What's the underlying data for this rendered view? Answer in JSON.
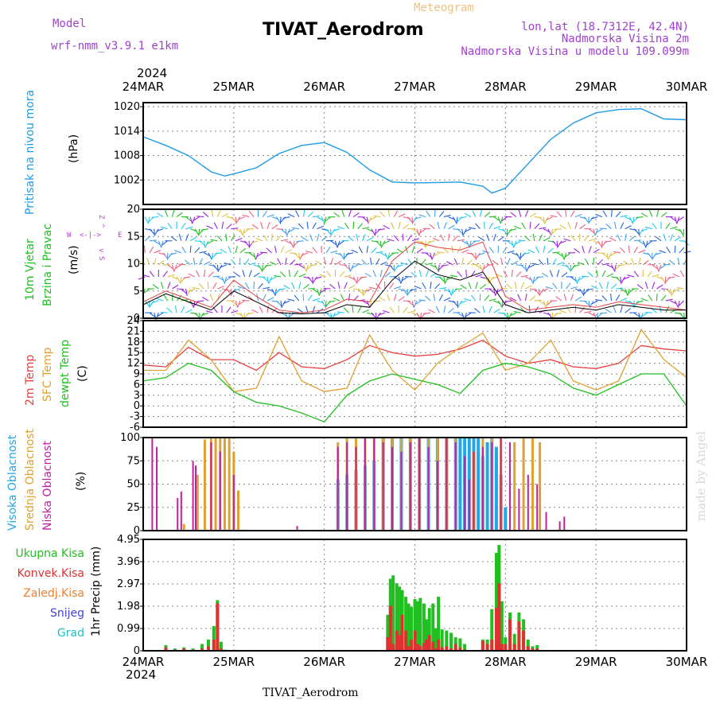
{
  "header": {
    "model_label": "Model",
    "model_name": "wrf-nmm_v3.9.1 e1km",
    "meteogram_label": "Meteogram",
    "title": "TIVAT_Aerodrom",
    "lonlat": "lon,lat (18.7312E, 42.4N)",
    "elevation": "Nadmorska Visina 2m",
    "model_elevation": "Nadmorska Visina u modelu 109.099m",
    "year_top": "2024",
    "year_bottom": "2024",
    "footer_station": "TIVAT_Aerodrom",
    "credit": "made by Angel"
  },
  "colors": {
    "pressure": "#1e9be6",
    "temp2m": "#e64040",
    "sfc": "#e0a030",
    "dewpt": "#20c020",
    "high_cloud": "#20a8e8",
    "mid_cloud": "#e0a030",
    "low_cloud": "#c020a0",
    "precip_total": "#20c020",
    "precip_conv": "#e03030",
    "wind_speed": "#000000",
    "gust": "#e04040"
  },
  "chart_data": [
    {
      "type": "line",
      "panel": "pressure",
      "ylabel": "Pritisak na nivou mora",
      "yunit": "(hPa)",
      "ylim": [
        996,
        1021
      ],
      "yticks": [
        1002,
        1008,
        1014,
        1020
      ],
      "ytick_labels": [
        "1002",
        "1008",
        "1014",
        "1020"
      ],
      "x_days": [
        0,
        0.25,
        0.5,
        0.75,
        0.9,
        1.0,
        1.25,
        1.5,
        1.75,
        2.0,
        2.25,
        2.5,
        2.75,
        3.0,
        3.25,
        3.5,
        3.75,
        3.85,
        4.0,
        4.25,
        4.5,
        4.75,
        5.0,
        5.25,
        5.5,
        5.75,
        6.0
      ],
      "series": [
        {
          "values": [
            1012.6,
            1010.5,
            1008.0,
            1004.0,
            1003.0,
            1003.5,
            1005.0,
            1008.5,
            1010.5,
            1011.2,
            1008.8,
            1004.5,
            1001.5,
            1001.3,
            1001.4,
            1001.5,
            1000.5,
            998.8,
            1000.0,
            1006.0,
            1012.0,
            1016.0,
            1018.5,
            1019.3,
            1019.5,
            1017.0,
            1016.8
          ]
        }
      ]
    },
    {
      "type": "barbs",
      "panel": "wind",
      "ylabel": [
        "10m Vjetar",
        "Brzina i Pravac"
      ],
      "yunit": "(m/s)",
      "compass": [
        "Z",
        "^",
        "W",
        "<-|->",
        "E",
        "v",
        "S"
      ],
      "ylim": [
        0,
        20
      ],
      "yticks": [
        0,
        5,
        10,
        15,
        20
      ],
      "ytick_labels": [
        "0",
        "5",
        "10",
        "15",
        "20"
      ],
      "x_days": [
        0,
        0.25,
        0.5,
        0.75,
        1.0,
        1.25,
        1.5,
        1.75,
        2.0,
        2.25,
        2.5,
        2.75,
        3.0,
        3.25,
        3.5,
        3.75,
        4.0,
        4.25,
        4.5,
        4.75,
        5.0,
        5.25,
        5.5,
        5.75,
        6.0
      ],
      "speed": [
        2.5,
        4.5,
        3.0,
        1.5,
        5.0,
        3.0,
        1.0,
        0.8,
        1.0,
        2.5,
        2.0,
        7.0,
        10.5,
        8.0,
        7.0,
        8.5,
        2.5,
        1.0,
        1.5,
        2.0,
        1.5,
        2.5,
        2.0,
        1.5,
        1.5
      ],
      "gust": [
        3.0,
        5.0,
        3.5,
        2.0,
        7.0,
        4.0,
        1.5,
        1.0,
        1.5,
        3.5,
        3.0,
        10.5,
        14.0,
        13.0,
        12.5,
        14.0,
        4.0,
        1.5,
        2.0,
        2.5,
        2.0,
        3.0,
        2.5,
        2.0,
        1.5
      ]
    },
    {
      "type": "line",
      "panel": "temperature",
      "ylabel": [
        "2m Temp",
        "SFC Temp",
        "dewpt Temp"
      ],
      "yunit": "(C)",
      "ylim": [
        -6,
        24
      ],
      "yticks": [
        -6,
        -3,
        0,
        3,
        6,
        9,
        12,
        15,
        18,
        21,
        24
      ],
      "ytick_labels": [
        "-6",
        "-3",
        "0",
        "3",
        "6",
        "9",
        "12",
        "15",
        "18",
        "21",
        "24"
      ],
      "x_days": [
        0,
        0.25,
        0.5,
        0.75,
        1.0,
        1.25,
        1.5,
        1.75,
        2.0,
        2.25,
        2.5,
        2.75,
        3.0,
        3.25,
        3.5,
        3.75,
        4.0,
        4.25,
        4.5,
        4.75,
        5.0,
        5.25,
        5.5,
        5.75,
        6.0
      ],
      "series": [
        {
          "name": "2m Temp",
          "values": [
            11.5,
            11.0,
            16.5,
            13.0,
            13.0,
            10.0,
            15.0,
            11.0,
            10.5,
            13.0,
            17.0,
            15.0,
            14.0,
            14.5,
            16.0,
            18.5,
            14.0,
            12.0,
            13.0,
            11.0,
            10.5,
            12.0,
            17.0,
            16.0,
            15.5
          ]
        },
        {
          "name": "SFC Temp",
          "values": [
            10.0,
            10.0,
            18.5,
            13.0,
            4.0,
            5.0,
            19.5,
            7.0,
            4.0,
            5.0,
            20.0,
            10.0,
            4.5,
            12.0,
            16.5,
            20.5,
            10.0,
            12.0,
            18.5,
            7.0,
            4.5,
            7.0,
            21.5,
            13.0,
            8.0
          ]
        },
        {
          "name": "dewpt Temp",
          "values": [
            7.0,
            8.0,
            12.0,
            10.0,
            4.0,
            1.0,
            0.0,
            -2.0,
            -4.5,
            3.0,
            7.0,
            9.0,
            7.5,
            6.0,
            3.5,
            10.0,
            12.0,
            11.0,
            9.0,
            5.0,
            3.0,
            6.0,
            9.0,
            9.0,
            0.0
          ]
        }
      ]
    },
    {
      "type": "bar",
      "panel": "clouds",
      "ylabel": [
        "Visoka Oblacnost",
        "Srednja Oblacnost",
        "Niska Oblacnost"
      ],
      "yunit": "(%)",
      "ylim": [
        0,
        100
      ],
      "yticks": [
        0,
        25,
        50,
        75,
        100
      ],
      "ytick_labels": [
        "0",
        "25",
        "50",
        "75",
        "100"
      ],
      "series": [
        {
          "name": "Visoka Oblacnost",
          "x_days": [
            0.9,
            1.0,
            1.1,
            2.15,
            2.25,
            2.35,
            2.45,
            2.55,
            2.65,
            2.75,
            2.85,
            2.95,
            3.05,
            3.15,
            3.25,
            3.35,
            3.45,
            3.5,
            3.55,
            3.6,
            3.65,
            3.7,
            3.75,
            3.8,
            3.85,
            3.9,
            3.95,
            4.0
          ],
          "values": [
            1,
            1,
            1,
            55,
            60,
            65,
            70,
            75,
            100,
            100,
            100,
            100,
            100,
            100,
            100,
            100,
            100,
            100,
            100,
            100,
            100,
            100,
            80,
            95,
            100,
            90,
            60,
            25
          ]
        },
        {
          "name": "Srednja Oblacnost",
          "x_days": [
            0.45,
            0.6,
            0.68,
            0.75,
            0.8,
            0.85,
            0.9,
            0.95,
            1.0,
            1.05,
            2.15,
            2.25,
            2.35,
            2.45,
            2.55,
            2.65,
            2.75,
            2.85,
            2.95,
            3.05,
            3.15,
            3.25,
            3.35,
            3.45,
            3.65,
            3.75,
            3.85,
            3.95,
            4.1,
            4.2,
            4.3,
            4.38
          ],
          "values": [
            7,
            60,
            98,
            100,
            100,
            100,
            100,
            100,
            85,
            43,
            95,
            100,
            100,
            100,
            100,
            100,
            100,
            100,
            100,
            100,
            100,
            100,
            100,
            100,
            85,
            100,
            100,
            100,
            95,
            100,
            100,
            95
          ]
        },
        {
          "name": "Niska Oblacnost",
          "x_days": [
            0.1,
            0.15,
            0.38,
            0.42,
            0.55,
            0.58,
            0.75,
            0.85,
            1.0,
            1.7,
            2.15,
            2.25,
            2.35,
            2.45,
            2.55,
            2.65,
            2.75,
            2.85,
            2.95,
            3.05,
            3.15,
            3.25,
            3.35,
            3.45,
            3.55,
            3.6,
            3.65,
            3.75,
            3.85,
            3.95,
            4.05,
            4.15,
            4.25,
            4.35,
            4.45,
            4.6,
            4.65
          ],
          "values": [
            100,
            90,
            35,
            42,
            75,
            70,
            95,
            85,
            60,
            5,
            90,
            95,
            90,
            100,
            100,
            95,
            90,
            85,
            95,
            100,
            90,
            75,
            100,
            95,
            80,
            55,
            85,
            90,
            95,
            100,
            95,
            45,
            60,
            50,
            20,
            10,
            15
          ]
        }
      ]
    },
    {
      "type": "bar",
      "panel": "precipitation",
      "ylabel": "1hr Precip (mm)",
      "legend": [
        "Ukupna Kisa",
        "Konvek.Kisa",
        "Zaledj.Kisa",
        "Snijeg",
        "Grad"
      ],
      "ylim": [
        0,
        4.95
      ],
      "yticks": [
        0,
        0.99,
        1.98,
        2.97,
        3.96,
        4.95
      ],
      "ytick_labels": [
        "0",
        "0.99",
        "1.98",
        "2.97",
        "3.96",
        "4.95"
      ],
      "x_days": [
        0.25,
        0.35,
        0.45,
        0.55,
        0.65,
        0.72,
        0.78,
        0.82,
        0.86,
        0.9,
        2.7,
        2.73,
        2.76,
        2.8,
        2.83,
        2.86,
        2.9,
        2.93,
        2.96,
        3.0,
        3.03,
        3.06,
        3.1,
        3.13,
        3.16,
        3.2,
        3.23,
        3.26,
        3.3,
        3.35,
        3.4,
        3.45,
        3.5,
        3.55,
        3.75,
        3.8,
        3.85,
        3.9,
        3.93,
        3.96,
        4.0,
        4.05,
        4.1,
        4.15,
        4.2,
        4.25,
        4.3,
        4.35
      ],
      "series": [
        {
          "name": "Ukupna Kisa",
          "values": [
            0.25,
            0.1,
            0.15,
            0.1,
            0.3,
            0.5,
            1.1,
            2.25,
            0.4,
            0.05,
            1.6,
            3.2,
            3.35,
            3.0,
            2.85,
            2.7,
            2.4,
            2.1,
            1.95,
            2.3,
            2.2,
            2.35,
            2.1,
            1.4,
            1.9,
            2.1,
            1.0,
            2.4,
            0.95,
            0.9,
            0.8,
            0.6,
            0.55,
            0.3,
            0.5,
            0.5,
            1.85,
            4.35,
            4.7,
            2.2,
            0.6,
            1.7,
            0.75,
            1.7,
            1.4,
            0.5,
            0.2,
            0.25
          ]
        },
        {
          "name": "Konvek.Kisa",
          "values": [
            0.15,
            0.05,
            0.1,
            0.05,
            0.1,
            0.2,
            0.5,
            2.1,
            0.1,
            0.02,
            0.6,
            2.0,
            0.3,
            0.9,
            0.7,
            1.6,
            0.9,
            0.2,
            0.5,
            0.9,
            0.3,
            0.2,
            0.35,
            0.5,
            0.7,
            0.4,
            0.1,
            0.5,
            0.15,
            0.2,
            0.1,
            0.3,
            0.15,
            0.05,
            0.45,
            0.3,
            0.5,
            1.9,
            3.0,
            0.3,
            0.3,
            1.4,
            0.3,
            1.3,
            0.9,
            0.2,
            0.1,
            0.1
          ]
        }
      ]
    }
  ],
  "x_axis": {
    "tick_labels": [
      "24MAR",
      "25MAR",
      "26MAR",
      "27MAR",
      "28MAR",
      "29MAR",
      "30MAR"
    ]
  }
}
